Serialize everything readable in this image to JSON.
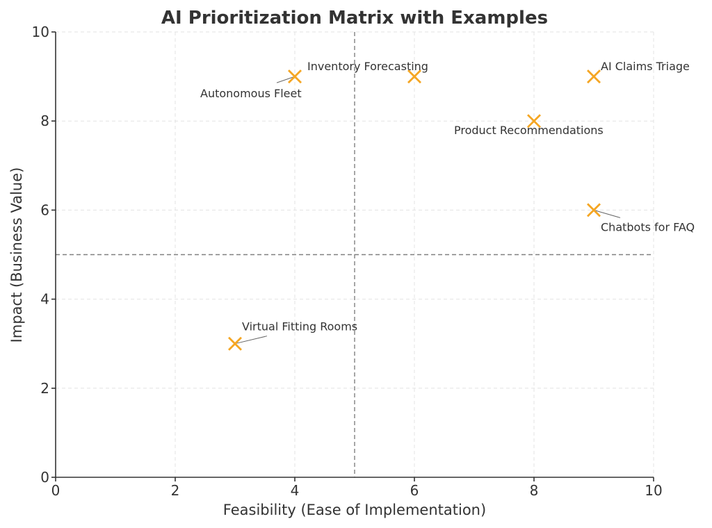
{
  "chart_data": {
    "type": "scatter",
    "title": "AI Prioritization Matrix with Examples",
    "xlabel": "Feasibility (Ease of Implementation)",
    "ylabel": "Impact (Business Value)",
    "xlim": [
      0,
      10
    ],
    "ylim": [
      0,
      10
    ],
    "xticks": [
      0,
      2,
      4,
      6,
      8,
      10
    ],
    "yticks": [
      0,
      2,
      4,
      6,
      8,
      10
    ],
    "grid": true,
    "marker": "x",
    "marker_color": "#f5a623",
    "threshold_x": 5,
    "threshold_y": 5,
    "points": [
      {
        "label": "Autonomous Fleet",
        "x": 4,
        "y": 9
      },
      {
        "label": "Inventory Forecasting",
        "x": 6,
        "y": 9
      },
      {
        "label": "AI Claims Triage",
        "x": 9,
        "y": 9
      },
      {
        "label": "Product Recommendations",
        "x": 8,
        "y": 8
      },
      {
        "label": "Chatbots for FAQ",
        "x": 9,
        "y": 6
      },
      {
        "label": "Virtual Fitting Rooms",
        "x": 3,
        "y": 3
      }
    ]
  }
}
